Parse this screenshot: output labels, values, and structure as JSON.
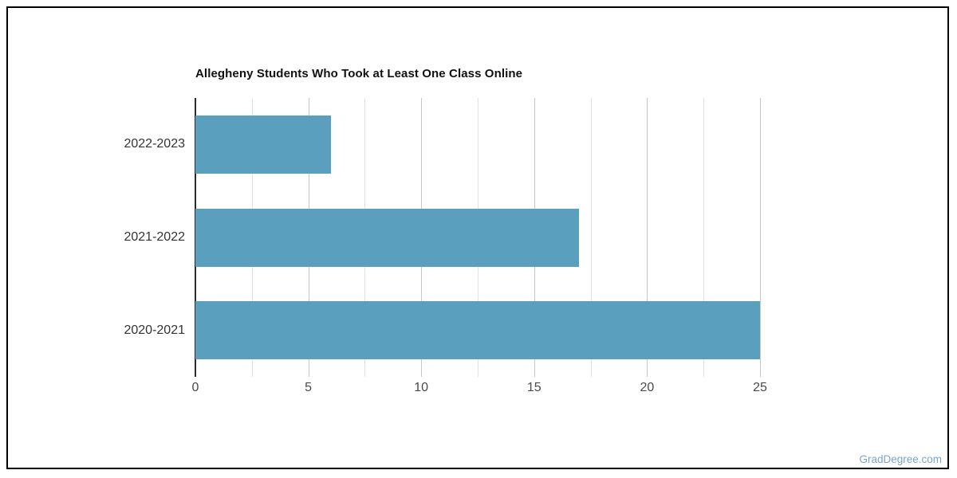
{
  "page": {
    "background": "#ffffff",
    "border_color": "#000000",
    "watermark": "GradDegree.com",
    "watermark_color": "#79a6c6"
  },
  "chart_data": {
    "type": "bar",
    "orientation": "horizontal",
    "title": "Allegheny Students Who Took at Least One Class Online",
    "categories": [
      "2022-2023",
      "2021-2022",
      "2020-2021"
    ],
    "values": [
      6,
      17,
      25
    ],
    "xlabel": "",
    "ylabel": "",
    "xlim": [
      0,
      25
    ],
    "x_major_ticks": [
      0,
      5,
      10,
      15,
      20,
      25
    ],
    "x_minor_step": 2.5,
    "grid": "vertical-only",
    "legend": "none",
    "colors": {
      "bar": "#5b9fbe",
      "gridline_major": "#c8c8c8",
      "gridline_minor": "#e1e1e1",
      "axis_line": "#2b2b2b",
      "tick_label": "#4a4a4a",
      "category_label": "#333333",
      "title": "#111111"
    }
  }
}
